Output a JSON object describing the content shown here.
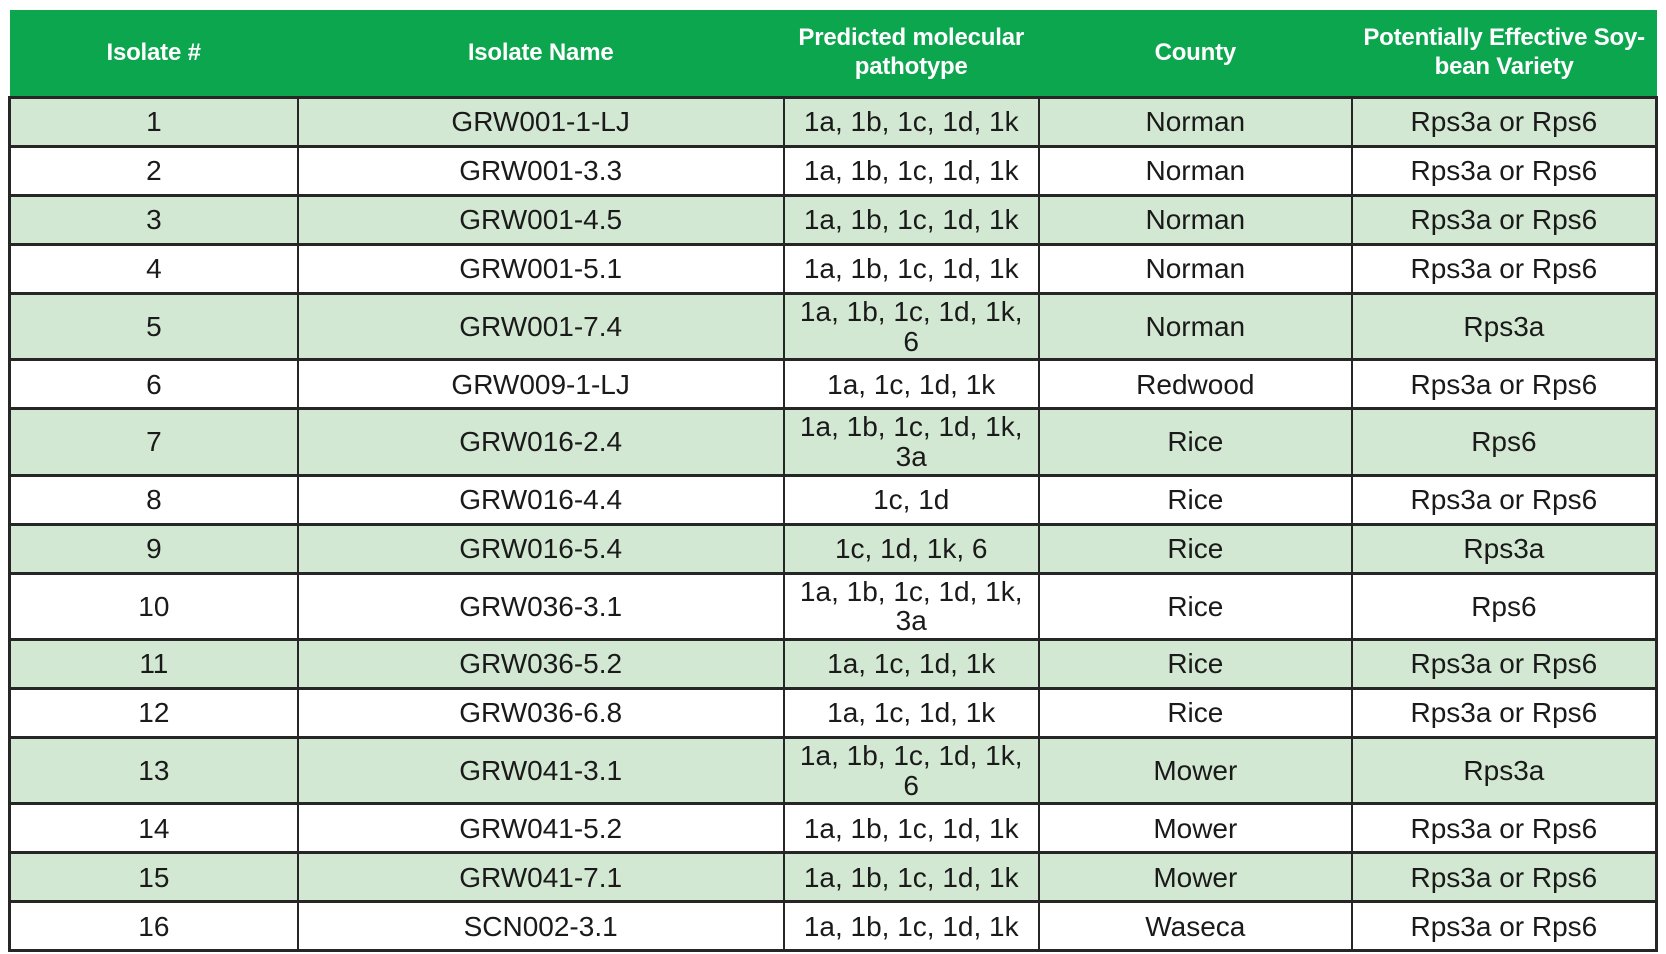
{
  "page": {
    "background_color": "#ffffff"
  },
  "table": {
    "header": {
      "bg_color": "#0CA64F",
      "text_color": "#ffffff",
      "columns": [
        "Isolate #",
        "Isolate Name",
        "Predicted molecular\npathotype",
        "County",
        "Potentially Effective Soy-\nbean Variety"
      ]
    },
    "body": {
      "stripe_color": "#D3E8D3",
      "alt_row_color": "#ffffff",
      "text_color": "#1a1a1a",
      "border_color": "#262626",
      "rows": [
        {
          "isolate_number": "1",
          "isolate_name": "GRW001-1-LJ",
          "pathotype": "1a, 1b, 1c, 1d, 1k",
          "county": "Norman",
          "variety": "Rps3a or Rps6"
        },
        {
          "isolate_number": "2",
          "isolate_name": "GRW001-3.3",
          "pathotype": "1a, 1b, 1c, 1d, 1k",
          "county": "Norman",
          "variety": "Rps3a or Rps6"
        },
        {
          "isolate_number": "3",
          "isolate_name": "GRW001-4.5",
          "pathotype": "1a, 1b, 1c, 1d, 1k",
          "county": "Norman",
          "variety": "Rps3a or Rps6"
        },
        {
          "isolate_number": "4",
          "isolate_name": "GRW001-5.1",
          "pathotype": "1a, 1b, 1c, 1d, 1k",
          "county": "Norman",
          "variety": "Rps3a or Rps6"
        },
        {
          "isolate_number": "5",
          "isolate_name": "GRW001-7.4",
          "pathotype": "1a, 1b, 1c, 1d, 1k, 6",
          "county": "Norman",
          "variety": "Rps3a"
        },
        {
          "isolate_number": "6",
          "isolate_name": "GRW009-1-LJ",
          "pathotype": "1a, 1c, 1d, 1k",
          "county": "Redwood",
          "variety": "Rps3a or Rps6"
        },
        {
          "isolate_number": "7",
          "isolate_name": "GRW016-2.4",
          "pathotype": "1a, 1b, 1c, 1d, 1k, 3a",
          "county": "Rice",
          "variety": "Rps6"
        },
        {
          "isolate_number": "8",
          "isolate_name": "GRW016-4.4",
          "pathotype": "1c, 1d",
          "county": "Rice",
          "variety": "Rps3a or Rps6"
        },
        {
          "isolate_number": "9",
          "isolate_name": "GRW016-5.4",
          "pathotype": "1c, 1d, 1k, 6",
          "county": "Rice",
          "variety": "Rps3a"
        },
        {
          "isolate_number": "10",
          "isolate_name": "GRW036-3.1",
          "pathotype": "1a, 1b, 1c, 1d, 1k, 3a",
          "county": "Rice",
          "variety": "Rps6"
        },
        {
          "isolate_number": "11",
          "isolate_name": "GRW036-5.2",
          "pathotype": "1a, 1c, 1d, 1k",
          "county": "Rice",
          "variety": "Rps3a or Rps6"
        },
        {
          "isolate_number": "12",
          "isolate_name": "GRW036-6.8",
          "pathotype": "1a, 1c, 1d, 1k",
          "county": "Rice",
          "variety": "Rps3a or Rps6"
        },
        {
          "isolate_number": "13",
          "isolate_name": "GRW041-3.1",
          "pathotype": "1a, 1b, 1c, 1d, 1k, 6",
          "county": "Mower",
          "variety": "Rps3a"
        },
        {
          "isolate_number": "14",
          "isolate_name": "GRW041-5.2",
          "pathotype": "1a, 1b, 1c, 1d, 1k",
          "county": "Mower",
          "variety": "Rps3a or Rps6"
        },
        {
          "isolate_number": "15",
          "isolate_name": "GRW041-7.1",
          "pathotype": "1a, 1b, 1c, 1d, 1k",
          "county": "Mower",
          "variety": "Rps3a or Rps6"
        },
        {
          "isolate_number": "16",
          "isolate_name": "SCN002-3.1",
          "pathotype": "1a, 1b, 1c, 1d, 1k",
          "county": "Waseca",
          "variety": "Rps3a or Rps6"
        }
      ]
    }
  }
}
